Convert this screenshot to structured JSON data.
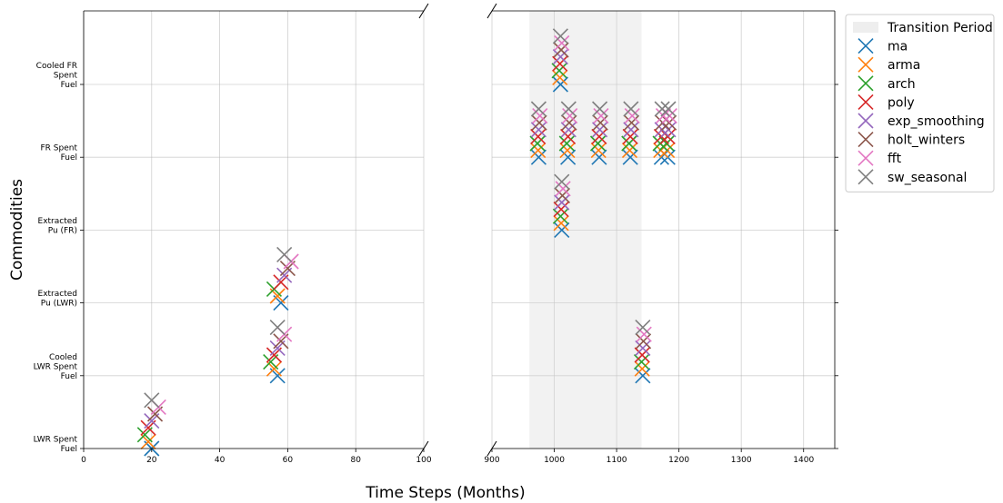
{
  "chart_data": {
    "type": "scatter",
    "xlabel": "Time Steps (Months)",
    "ylabel": "Commodities",
    "categories": [
      "LWR Spent\nFuel",
      "Cooled\nLWR Spent\nFuel",
      "Extracted\nPu (LWR)",
      "Extracted\nPu (FR)",
      "FR Spent\nFuel",
      "Cooled FR\nSpent\nFuel"
    ],
    "panels": [
      {
        "xlim": [
          0,
          100
        ],
        "xticks": [
          0,
          20,
          40,
          60,
          80,
          100
        ]
      },
      {
        "xlim": [
          900,
          1450
        ],
        "xticks": [
          900,
          1000,
          1100,
          1200,
          1300,
          1400
        ]
      }
    ],
    "transition_period": {
      "label": "Transition Period",
      "x": [
        960,
        1140
      ]
    },
    "marker": "x",
    "grid": true,
    "legend_position": "outside-right",
    "series": [
      {
        "name": "ma",
        "color": "#1f77b4",
        "offset": 0.0,
        "points": [
          [
            20,
            0
          ],
          [
            57,
            1
          ],
          [
            58,
            2
          ],
          [
            1010,
            5
          ],
          [
            975,
            4
          ],
          [
            1022,
            4
          ],
          [
            1072,
            4
          ],
          [
            1122,
            4
          ],
          [
            1172,
            4
          ],
          [
            1182,
            4
          ],
          [
            1012,
            3
          ],
          [
            1142,
            1
          ]
        ]
      },
      {
        "name": "arma",
        "color": "#ff7f0e",
        "offset": 0.0,
        "points": [
          [
            19,
            0
          ],
          [
            56,
            1
          ],
          [
            57,
            2
          ],
          [
            1009,
            5
          ],
          [
            974,
            4
          ],
          [
            1021,
            4
          ],
          [
            1071,
            4
          ],
          [
            1121,
            4
          ],
          [
            1171,
            4
          ],
          [
            1181,
            4
          ],
          [
            1011,
            3
          ],
          [
            1141,
            1
          ]
        ]
      },
      {
        "name": "arch",
        "color": "#2ca02c",
        "offset": 0.0,
        "points": [
          [
            18,
            0
          ],
          [
            55,
            1
          ],
          [
            56,
            2
          ],
          [
            1008,
            5
          ],
          [
            973,
            4
          ],
          [
            1020,
            4
          ],
          [
            1070,
            4
          ],
          [
            1120,
            4
          ],
          [
            1170,
            4
          ],
          [
            1180,
            4
          ],
          [
            1010,
            3
          ],
          [
            1140,
            1
          ]
        ]
      },
      {
        "name": "poly",
        "color": "#d62728",
        "offset": 0.0,
        "points": [
          [
            19,
            0
          ],
          [
            56,
            1
          ],
          [
            58,
            2
          ],
          [
            1009,
            5
          ],
          [
            974,
            4
          ],
          [
            1022,
            4
          ],
          [
            1072,
            4
          ],
          [
            1122,
            4
          ],
          [
            1172,
            4
          ],
          [
            1182,
            4
          ],
          [
            1011,
            3
          ],
          [
            1141,
            1
          ]
        ]
      },
      {
        "name": "exp_smoothing",
        "color": "#9467bd",
        "offset": 0.0,
        "points": [
          [
            20,
            0
          ],
          [
            57,
            1
          ],
          [
            59,
            2
          ],
          [
            1010,
            5
          ],
          [
            975,
            4
          ],
          [
            1023,
            4
          ],
          [
            1073,
            4
          ],
          [
            1123,
            4
          ],
          [
            1173,
            4
          ],
          [
            1183,
            4
          ],
          [
            1012,
            3
          ],
          [
            1142,
            1
          ]
        ]
      },
      {
        "name": "holt_winters",
        "color": "#8c564b",
        "offset": 0.0,
        "points": [
          [
            21,
            0
          ],
          [
            58,
            1
          ],
          [
            60,
            2
          ],
          [
            1011,
            5
          ],
          [
            976,
            4
          ],
          [
            1024,
            4
          ],
          [
            1074,
            4
          ],
          [
            1124,
            4
          ],
          [
            1174,
            4
          ],
          [
            1184,
            4
          ],
          [
            1013,
            3
          ],
          [
            1143,
            1
          ]
        ]
      },
      {
        "name": "fft",
        "color": "#e377c2",
        "offset": 0.0,
        "points": [
          [
            22,
            0
          ],
          [
            59,
            1
          ],
          [
            61,
            2
          ],
          [
            1012,
            5
          ],
          [
            977,
            4
          ],
          [
            1025,
            4
          ],
          [
            1075,
            4
          ],
          [
            1125,
            4
          ],
          [
            1175,
            4
          ],
          [
            1185,
            4
          ],
          [
            1014,
            3
          ],
          [
            1144,
            1
          ]
        ]
      },
      {
        "name": "sw_seasonal",
        "color": "#7f7f7f",
        "offset": 0.0,
        "points": [
          [
            20,
            0
          ],
          [
            57,
            1
          ],
          [
            59,
            2
          ],
          [
            1010,
            5
          ],
          [
            975,
            4
          ],
          [
            1023,
            4
          ],
          [
            1073,
            4
          ],
          [
            1123,
            4
          ],
          [
            1173,
            4
          ],
          [
            1183,
            4
          ],
          [
            1012,
            3
          ],
          [
            1142,
            1
          ]
        ]
      }
    ]
  }
}
